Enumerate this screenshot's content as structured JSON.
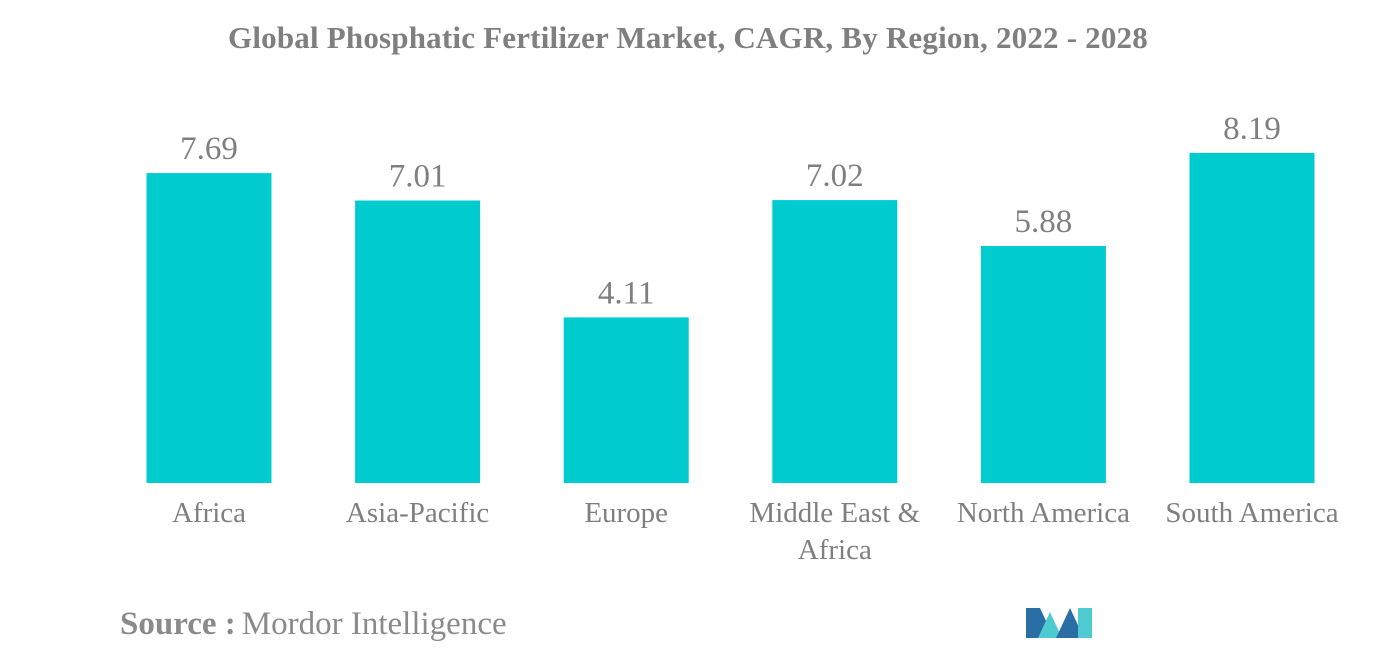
{
  "chart_data": {
    "type": "bar",
    "title": "Global Phosphatic Fertilizer Market, CAGR, By Region, 2022 - 2028",
    "categories": [
      "Africa",
      "Asia-Pacific",
      "Europe",
      "Middle East & Africa",
      "North America",
      "South America"
    ],
    "category_lines": [
      [
        "Africa"
      ],
      [
        "Asia-Pacific"
      ],
      [
        "Europe"
      ],
      [
        "Middle East &",
        "Africa"
      ],
      [
        "North America"
      ],
      [
        "South America"
      ]
    ],
    "values": [
      7.69,
      7.01,
      4.11,
      7.02,
      5.88,
      8.19
    ],
    "value_labels": [
      "7.69",
      "7.01",
      "4.11",
      "7.02",
      "5.88",
      "8.19"
    ],
    "xlabel": "",
    "ylabel": "",
    "ylim": [
      0,
      9
    ],
    "grid": false,
    "legend": "none",
    "bar_color": "#00cccf",
    "text_color": "#7f7f7f"
  },
  "source": {
    "label": "Source :",
    "name": "Mordor Intelligence"
  },
  "logo": {
    "icon": "mordor-intelligence-logo-icon",
    "colors": [
      "#2b6ea6",
      "#4ecbd1"
    ]
  }
}
